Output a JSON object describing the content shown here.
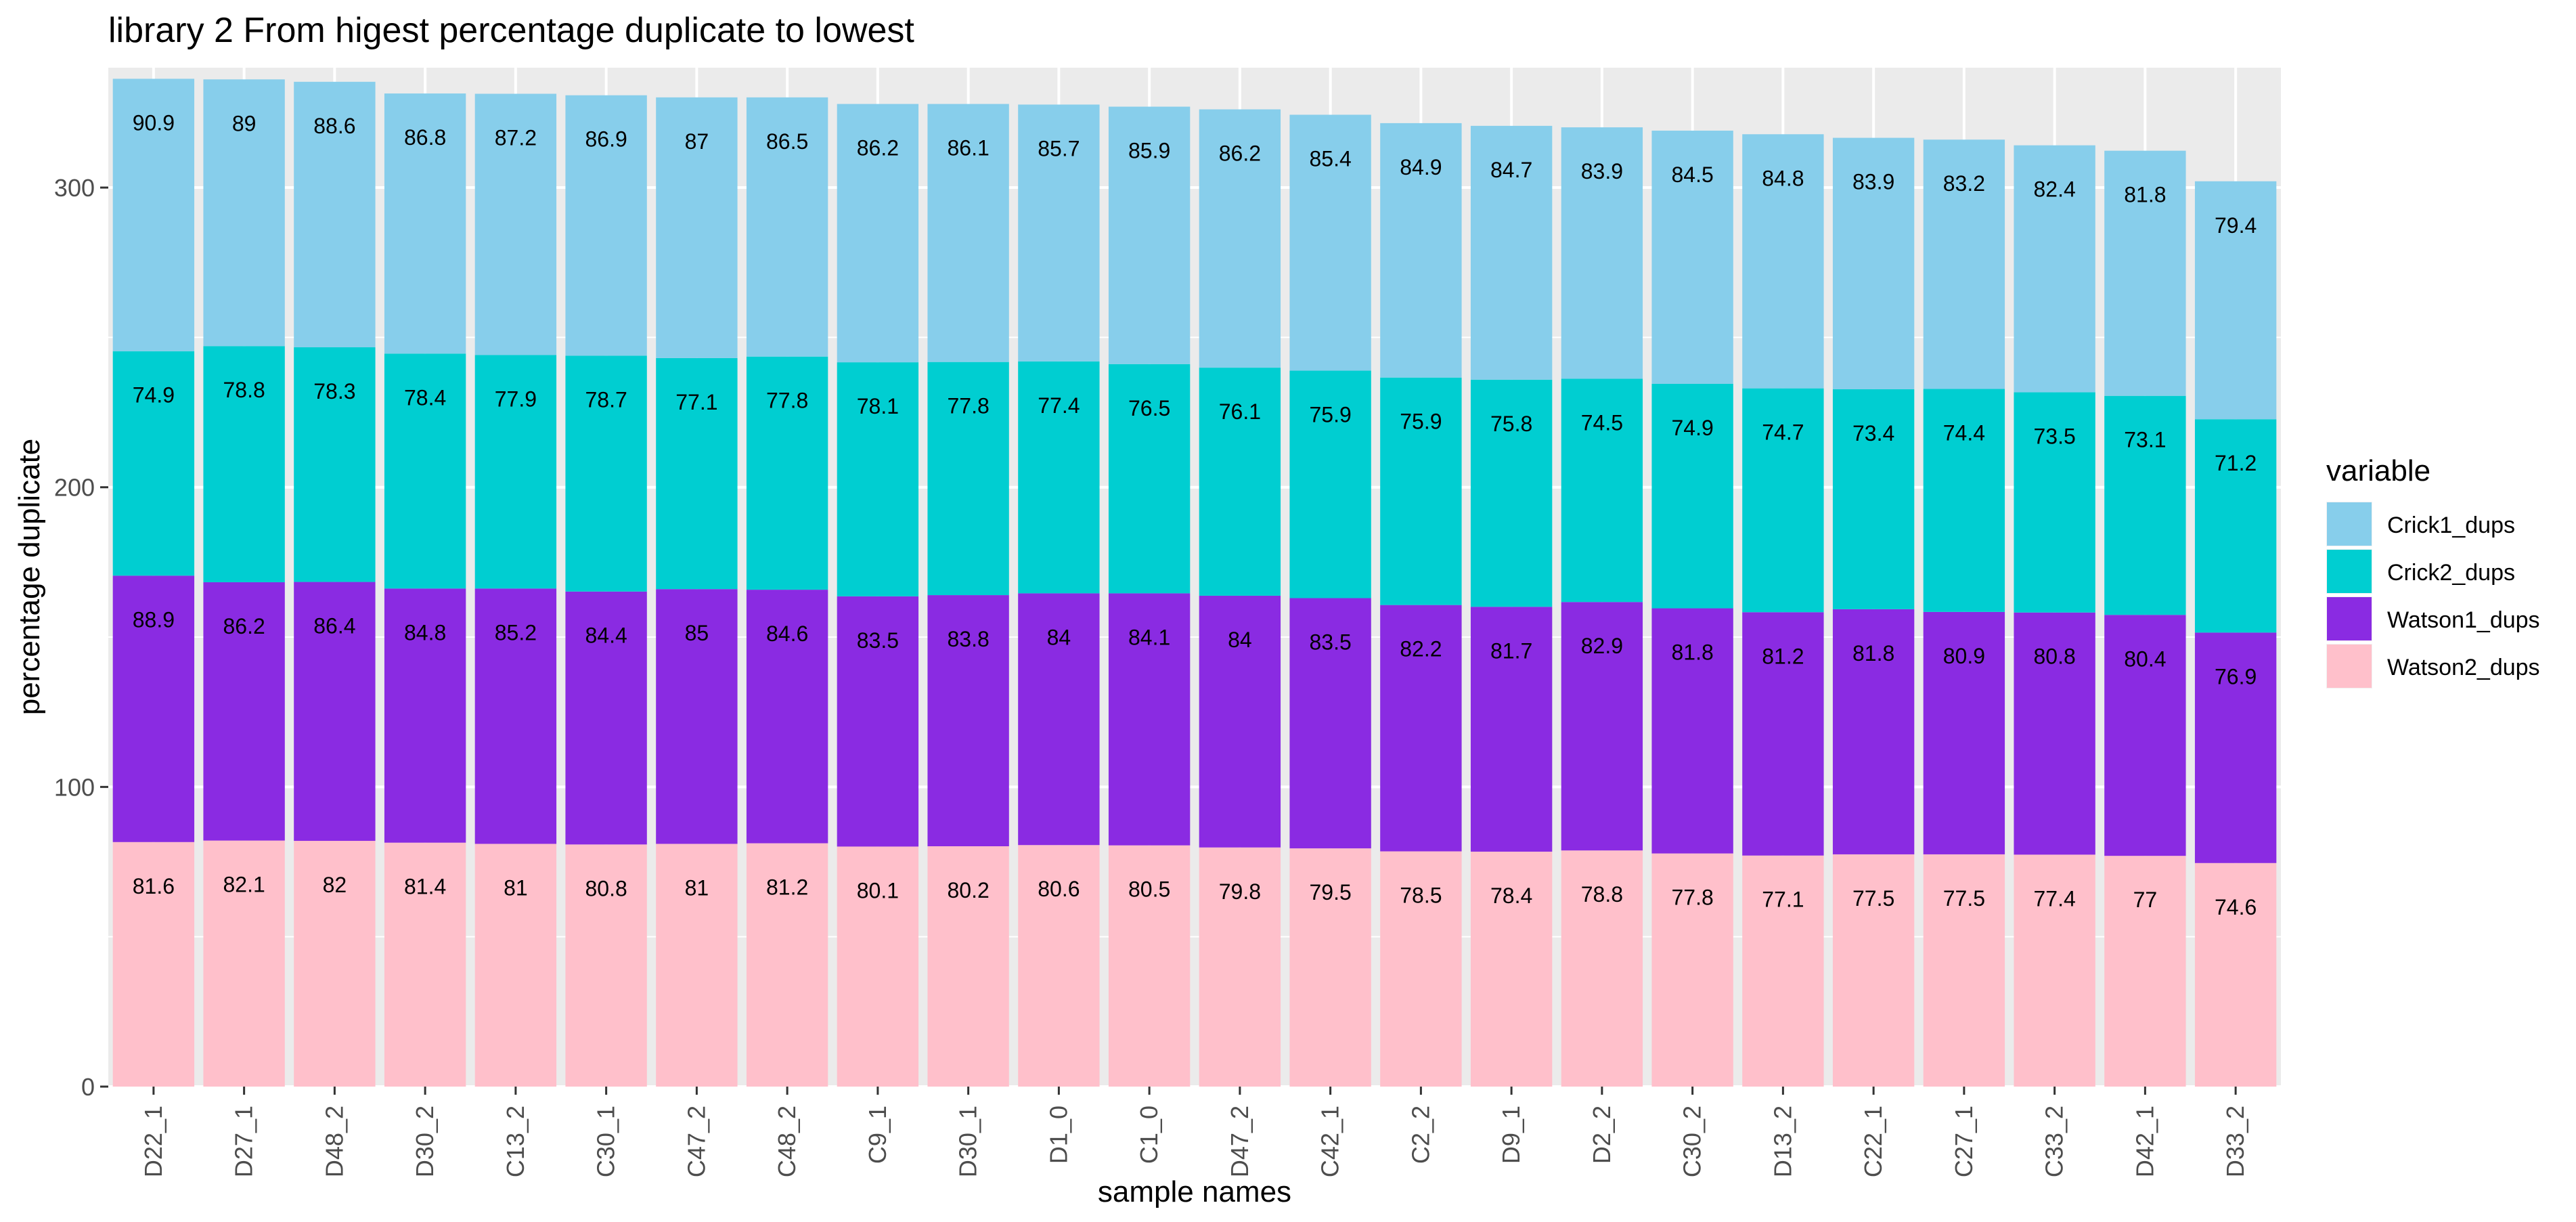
{
  "chart_data": {
    "type": "bar",
    "stacked": true,
    "title": "library 2 From higest percentage duplicate to lowest",
    "xlabel": "sample names",
    "ylabel": "percentage duplicate",
    "ylim": [
      0,
      340
    ],
    "yticks": [
      0,
      100,
      200,
      300
    ],
    "grid": true,
    "legend": {
      "title": "variable",
      "position": "right"
    },
    "categories": [
      "D22_1",
      "D27_1",
      "D48_2",
      "D30_2",
      "C13_2",
      "C30_1",
      "C47_2",
      "C48_2",
      "C9_1",
      "D30_1",
      "D1_0",
      "C1_0",
      "D47_2",
      "C42_1",
      "C2_2",
      "D9_1",
      "D2_2",
      "C30_2",
      "D13_2",
      "C22_1",
      "C27_1",
      "C33_2",
      "D42_1",
      "D33_2"
    ],
    "series": [
      {
        "name": "Watson2_dups",
        "color": "#FFC0CB",
        "values": [
          81.6,
          82.1,
          82,
          81.4,
          81,
          80.8,
          81,
          81.2,
          80.1,
          80.2,
          80.6,
          80.5,
          79.8,
          79.5,
          78.5,
          78.4,
          78.8,
          77.8,
          77.1,
          77.5,
          77.5,
          77.4,
          77,
          74.6
        ]
      },
      {
        "name": "Watson1_dups",
        "color": "#8A2BE2",
        "values": [
          88.9,
          86.2,
          86.4,
          84.8,
          85.2,
          84.4,
          85,
          84.6,
          83.5,
          83.8,
          84,
          84.1,
          84,
          83.5,
          82.2,
          81.7,
          82.9,
          81.8,
          81.2,
          81.8,
          80.9,
          80.8,
          80.4,
          76.9
        ]
      },
      {
        "name": "Crick2_dups",
        "color": "#00CED1",
        "values": [
          74.9,
          78.8,
          78.3,
          78.4,
          77.9,
          78.7,
          77.1,
          77.8,
          78.1,
          77.8,
          77.4,
          76.5,
          76.1,
          75.9,
          75.9,
          75.8,
          74.5,
          74.9,
          74.7,
          73.4,
          74.4,
          73.5,
          73.1,
          71.2
        ]
      },
      {
        "name": "Crick1_dups",
        "color": "#87CEEB",
        "values": [
          90.9,
          89,
          88.6,
          86.8,
          87.2,
          86.9,
          87,
          86.5,
          86.2,
          86.1,
          85.7,
          85.9,
          86.2,
          85.4,
          84.9,
          84.7,
          83.9,
          84.5,
          84.8,
          83.9,
          83.2,
          82.4,
          81.8,
          79.4
        ]
      }
    ],
    "legend_order": [
      "Crick1_dups",
      "Crick2_dups",
      "Watson1_dups",
      "Watson2_dups"
    ]
  }
}
